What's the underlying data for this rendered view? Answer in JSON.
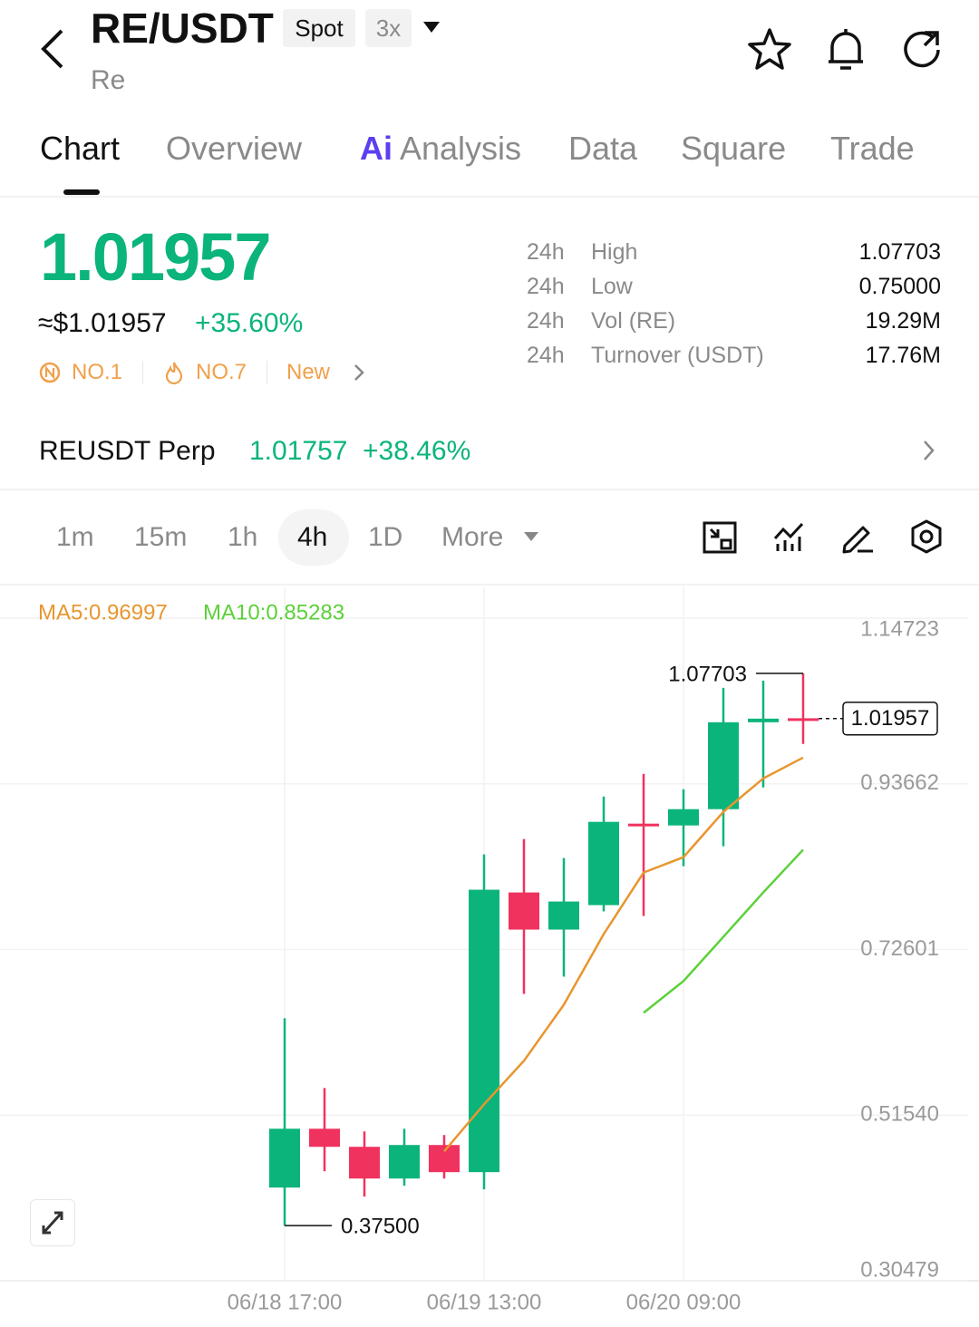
{
  "header": {
    "symbol": "RE/USDT",
    "badges": [
      "Spot",
      "3x"
    ],
    "name": "Re"
  },
  "tabs": {
    "ai_badge": "Ai",
    "items": [
      "Chart",
      "Overview",
      "Analysis",
      "Data",
      "Square",
      "Trade"
    ]
  },
  "price": {
    "last": "1.01957",
    "usd": "≈$1.01957",
    "change": "+35.60%",
    "tags": [
      "NO.1",
      "NO.7",
      "New"
    ]
  },
  "stats": [
    {
      "period": "24h",
      "label": "High",
      "value": "1.07703"
    },
    {
      "period": "24h",
      "label": "Low",
      "value": "0.75000"
    },
    {
      "period": "24h",
      "label": "Vol (RE)",
      "value": "19.29M"
    },
    {
      "period": "24h",
      "label": "Turnover (USDT)",
      "value": "17.76M"
    }
  ],
  "perp": {
    "name": "REUSDT Perp",
    "price": "1.01757",
    "change": "+38.46%"
  },
  "intervals": {
    "items": [
      "1m",
      "15m",
      "1h",
      "4h",
      "1D",
      "More"
    ],
    "active": 3
  },
  "chart_data": {
    "type": "candlestick",
    "categories": [
      "06/18 17:00",
      null,
      null,
      null,
      null,
      "06/19 13:00",
      null,
      null,
      null,
      null,
      "06/20 09:00",
      null,
      null,
      null
    ],
    "open": [
      0.4233,
      0.4981,
      0.4751,
      0.4348,
      0.4774,
      0.4429,
      0.7985,
      0.7513,
      0.7824,
      0.886,
      0.8837,
      0.9044,
      1.0149,
      1.02
    ],
    "high": [
      0.6385,
      0.5499,
      0.4947,
      0.4981,
      0.4901,
      0.8469,
      0.8664,
      0.8423,
      0.9205,
      0.9493,
      0.9297,
      1.0586,
      1.0678,
      1.07703
    ],
    "low": [
      0.375,
      0.4441,
      0.4118,
      0.4256,
      0.4348,
      0.421,
      0.6696,
      0.6915,
      0.7744,
      0.7686,
      0.8319,
      0.8572,
      0.932,
      0.9873
    ],
    "close": [
      0.4981,
      0.4751,
      0.4348,
      0.4774,
      0.4429,
      0.802,
      0.7513,
      0.787,
      0.8883,
      0.8837,
      0.9044,
      1.0149,
      1.0195,
      1.01957
    ],
    "up_color": "#0bb47b",
    "down_color": "#f0325e",
    "series": [
      {
        "label": "MA5:0.96997",
        "color": "#e8962e",
        "values": [
          null,
          null,
          null,
          null,
          0.4694,
          0.5292,
          0.5845,
          0.6558,
          0.7456,
          0.8238,
          0.8434,
          0.901,
          0.9435,
          0.96997
        ]
      },
      {
        "label": "MA10:0.85283",
        "color": "#5cd13a",
        "values": [
          null,
          null,
          null,
          null,
          null,
          null,
          null,
          null,
          null,
          0.6455,
          0.6858,
          0.7421,
          0.7985,
          0.85283
        ]
      }
    ],
    "ylim": [
      0.30479,
      1.14723
    ],
    "yticks": [
      0.30479,
      {
        "value": 0.5154,
        "label": "0.51540"
      },
      0.72601,
      0.93662,
      1.14723
    ],
    "grid": true,
    "annotations": {
      "high": "1.07703",
      "low": "0.37500",
      "last": "1.01957"
    }
  }
}
